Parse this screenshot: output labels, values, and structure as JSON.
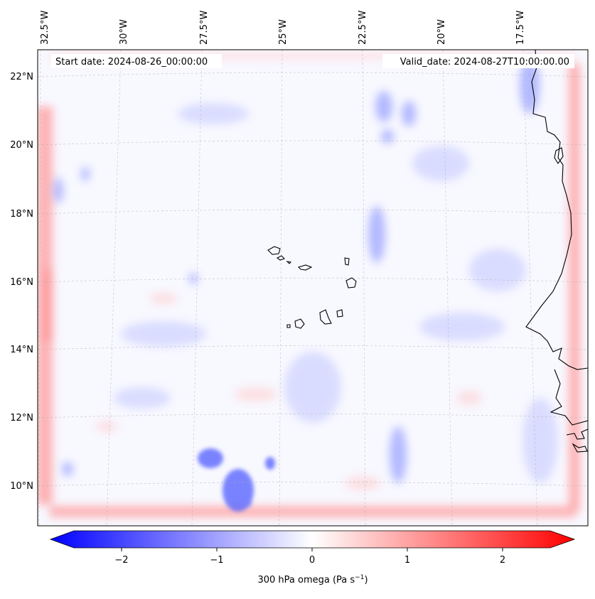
{
  "map": {
    "start_label": "Start date: 2024-08-26_00:00:00",
    "valid_label": "Valid_date: 2024-08-27T10:00:00.00",
    "longitude_labels": [
      "32.5°W",
      "30°W",
      "27.5°W",
      "25°W",
      "22.5°W",
      "20°W",
      "17.5°W"
    ],
    "latitude_labels": [
      "22°N",
      "20°N",
      "18°N",
      "16°N",
      "14°N",
      "12°N",
      "10°N"
    ]
  },
  "colorbar": {
    "label_prefix": "300 hPa omega (Pa s",
    "label_exponent": "−1",
    "label_suffix": ")",
    "ticks": [
      "−2",
      "−1",
      "0",
      "1",
      "2"
    ],
    "range": [
      -2.5,
      2.5
    ],
    "colors": {
      "negative": "#0000ff",
      "zero": "#ffffff",
      "positive": "#ff0000"
    }
  }
}
